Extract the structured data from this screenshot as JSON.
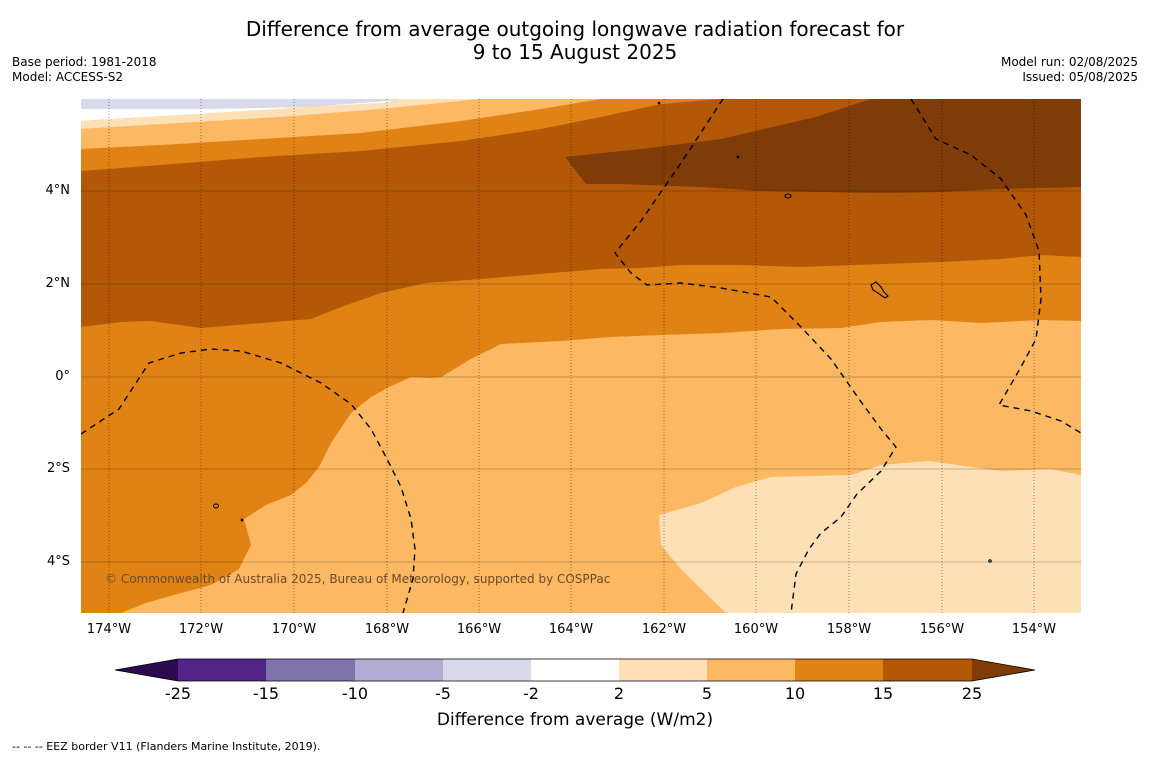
{
  "title_line1": "Difference from average outgoing longwave radiation forecast for",
  "title_line2": "9 to 15 August 2025",
  "meta_left": {
    "base_period": "Base period: 1981-2018",
    "model": "Model: ACCESS-S2"
  },
  "meta_right": {
    "model_run": "Model run: 02/08/2025",
    "issued": "Issued: 05/08/2025"
  },
  "copyright": "© Commonwealth of Australia 2025, Bureau of Meteorology, supported by COSPPac",
  "lat_labels": [
    "4°N",
    "2°N",
    "0°",
    "2°S",
    "4°S"
  ],
  "lon_labels": [
    "174°W",
    "172°W",
    "170°W",
    "168°W",
    "166°W",
    "164°W",
    "162°W",
    "160°W",
    "158°W",
    "156°W",
    "154°W"
  ],
  "colorbar": {
    "title": "Difference from average (W/m2)",
    "ticks": [
      "-25",
      "-15",
      "-10",
      "-5",
      "-2",
      "2",
      "5",
      "10",
      "15",
      "25"
    ],
    "colors": {
      "under": "#2d0a4e",
      "c1": "#522488",
      "c2": "#8073ac",
      "c3": "#b2abd2",
      "c4": "#d8daeb",
      "c5": "#ffffff",
      "c6": "#fee0b6",
      "c7": "#fdb863",
      "c8": "#e08214",
      "c9": "#b35806",
      "over": "#7f3b08"
    }
  },
  "map_colors": {
    "band_2_5": "#fee0b6",
    "band_5_10": "#fdb863",
    "band_10_15": "#e08214",
    "band_15_25": "#b35806",
    "band_over_25": "#7f3b08",
    "band_neg_2_5": "#d8daeb"
  },
  "legend_note": "--  --  -- EEZ border V11 (Flanders Marine Institute, 2019)."
}
